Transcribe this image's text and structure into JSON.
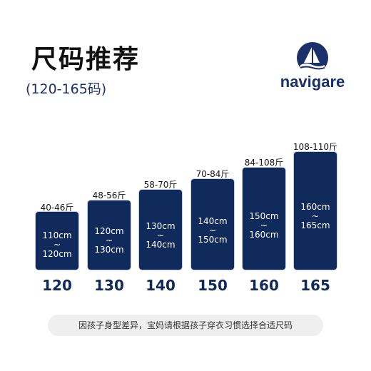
{
  "title": "尺码推荐",
  "subtitle": "(120-165码)",
  "logo": {
    "text": "navigare",
    "icon": "sailboat-icon",
    "color": "#1b2f6b"
  },
  "bar_color": "#102a5c",
  "sizes": [
    {
      "size": "120",
      "weight": "40-46斤",
      "height_min": "110cm",
      "tilde": "~",
      "height_max": "120cm"
    },
    {
      "size": "130",
      "weight": "48-56斤",
      "height_min": "120cm",
      "tilde": "~",
      "height_max": "130cm"
    },
    {
      "size": "140",
      "weight": "58-70斤",
      "height_min": "130cm",
      "tilde": "~",
      "height_max": "140cm"
    },
    {
      "size": "150",
      "weight": "70-84斤",
      "height_min": "140cm",
      "tilde": "~",
      "height_max": "150cm"
    },
    {
      "size": "160",
      "weight": "84-108斤",
      "height_min": "150cm",
      "tilde": "~",
      "height_max": "160cm"
    },
    {
      "size": "165",
      "weight": "108-110斤",
      "height_min": "160cm",
      "tilde": "~",
      "height_max": "165cm"
    }
  ],
  "footer": "因孩子身型差异，宝妈请根据孩子穿衣习惯选择合适尺码"
}
